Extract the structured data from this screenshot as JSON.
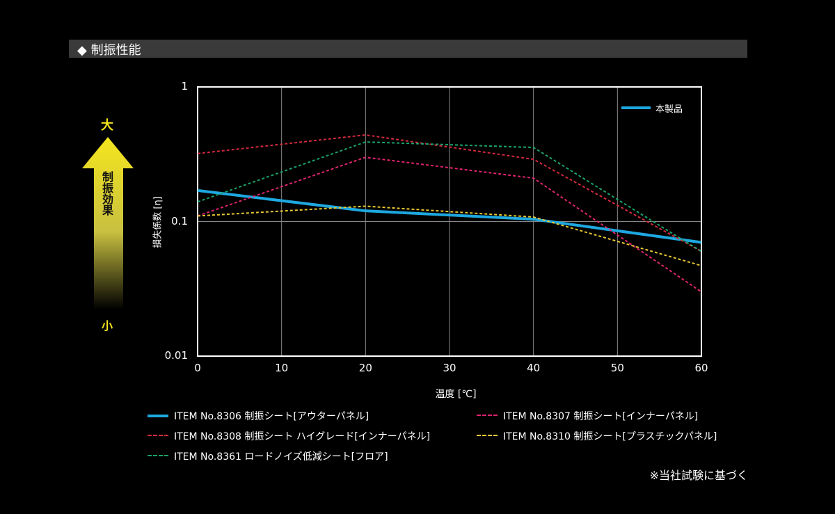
{
  "header": {
    "title": "◆ 制振性能"
  },
  "effect_arrow": {
    "high": "大",
    "low": "小",
    "label": "制振効果",
    "color": "#f5e61e"
  },
  "note": "※当社試験に基づく",
  "chart_data": {
    "type": "line",
    "xlabel": "温度 [℃]",
    "ylabel": "損失係数 [η]",
    "x": [
      0,
      20,
      40,
      60
    ],
    "xlim": [
      0,
      60
    ],
    "xticks": [
      "0",
      "10",
      "20",
      "30",
      "40",
      "50",
      "60"
    ],
    "ylim": [
      0.01,
      1
    ],
    "yscale": "log",
    "yticks": [
      "0.01",
      "0.1",
      "1"
    ],
    "grid": true,
    "inner_legend": {
      "label": "本製品",
      "placement": "top-right"
    },
    "series": [
      {
        "name": "ITEM No.8306 制振シート[アウターパネル]",
        "color": "#1ea8e0",
        "style": "solid",
        "values": [
          0.17,
          0.12,
          0.104,
          0.07
        ]
      },
      {
        "name": "ITEM No.8307 制振シート[インナーパネル]",
        "color": "#e0256e",
        "style": "dashed",
        "values": [
          0.11,
          0.3,
          0.21,
          0.03
        ]
      },
      {
        "name": "ITEM No.8308 制振シート ハイグレード[インナーパネル]",
        "color": "#d42a3c",
        "style": "dashed",
        "values": [
          0.32,
          0.44,
          0.29,
          0.06
        ]
      },
      {
        "name": "ITEM No.8310 制振シート[プラスチックパネル]",
        "color": "#e8c832",
        "style": "dashed",
        "values": [
          0.11,
          0.13,
          0.108,
          0.047
        ]
      },
      {
        "name": "ITEM No.8361 ロードノイズ低減シート[フロア]",
        "color": "#1aa36a",
        "style": "dashed",
        "values": [
          0.14,
          0.39,
          0.355,
          0.06
        ]
      }
    ]
  }
}
